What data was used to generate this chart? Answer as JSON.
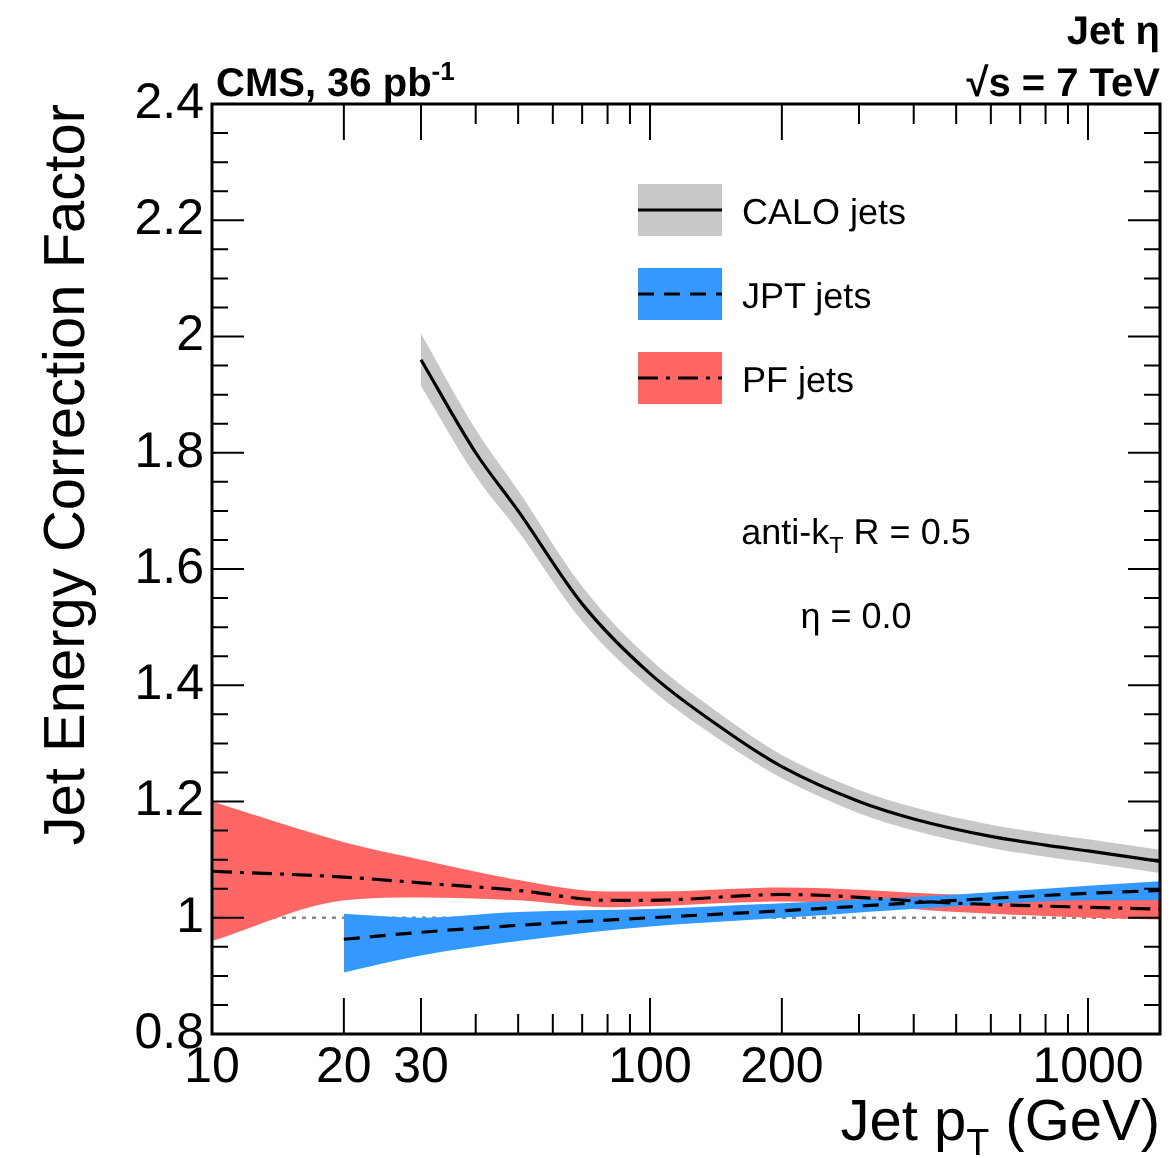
{
  "chart_data": {
    "type": "line",
    "title": "CMS, 36 pb$^{-1}$",
    "xlabel": "Jet p$_{T}$ (GeV)",
    "ylabel": "Jet Energy Correction Factor",
    "annotations": [
      "Jet η",
      "√s = 7 TeV",
      "anti-k$_{T}$ R = 0.5",
      "η = 0.0"
    ],
    "log": "x",
    "xlim": [
      10,
      1460
    ],
    "ylim": [
      0.8,
      2.4
    ],
    "xticks": [
      10,
      20,
      30,
      {
        "value": 40,
        "label": null
      },
      {
        "value": 50,
        "label": null
      },
      {
        "value": 60,
        "label": null
      },
      {
        "value": 70,
        "label": null
      },
      {
        "value": 80,
        "label": null
      },
      {
        "value": 90,
        "label": null
      },
      100,
      200,
      {
        "value": 300,
        "label": null
      },
      {
        "value": 400,
        "label": null
      },
      {
        "value": 500,
        "label": null
      },
      {
        "value": 600,
        "label": null
      },
      {
        "value": 700,
        "label": null
      },
      {
        "value": 800,
        "label": null
      },
      {
        "value": 900,
        "label": null
      },
      1000
    ],
    "yticks": [
      0.8,
      {
        "value": 0.85,
        "label": null
      },
      {
        "value": 0.9,
        "label": null
      },
      {
        "value": 0.95,
        "label": null
      },
      1,
      {
        "value": 1.05,
        "label": null
      },
      {
        "value": 1.1,
        "label": null
      },
      {
        "value": 1.15,
        "label": null
      },
      1.2,
      {
        "value": 1.25,
        "label": null
      },
      {
        "value": 1.3,
        "label": null
      },
      {
        "value": 1.35,
        "label": null
      },
      1.4,
      {
        "value": 1.45,
        "label": null
      },
      {
        "value": 1.5,
        "label": null
      },
      {
        "value": 1.55,
        "label": null
      },
      1.6,
      {
        "value": 1.65,
        "label": null
      },
      {
        "value": 1.7,
        "label": null
      },
      {
        "value": 1.75,
        "label": null
      },
      1.8,
      {
        "value": 1.85,
        "label": null
      },
      {
        "value": 1.9,
        "label": null
      },
      {
        "value": 1.95,
        "label": null
      },
      2,
      {
        "value": 2.05,
        "label": null
      },
      {
        "value": 2.1,
        "label": null
      },
      {
        "value": 2.15,
        "label": null
      },
      2.2,
      {
        "value": 2.25,
        "label": null
      },
      {
        "value": 2.3,
        "label": null
      },
      {
        "value": 2.35,
        "label": null
      },
      2.4
    ],
    "grid": false,
    "legend": "top right",
    "ref_lines": [
      {
        "axis": "y",
        "value": 1,
        "color": "#888888",
        "line_style": "dotted"
      }
    ],
    "series": [
      {
        "name": "CALO jets",
        "color": "#000000",
        "line_style": "solid",
        "x": [
          30,
          40,
          50,
          70,
          100,
          150,
          200,
          300,
          400,
          600,
          800,
          1000,
          1460
        ],
        "values": [
          1.96,
          1.8,
          1.7,
          1.54,
          1.42,
          1.32,
          1.26,
          1.2,
          1.17,
          1.14,
          1.125,
          1.115,
          1.097
        ],
        "lower": [
          1.915,
          1.76,
          1.665,
          1.51,
          1.395,
          1.298,
          1.24,
          1.18,
          1.15,
          1.12,
          1.105,
          1.095,
          1.077
        ],
        "upper": [
          2.005,
          1.84,
          1.735,
          1.57,
          1.445,
          1.342,
          1.28,
          1.22,
          1.19,
          1.16,
          1.145,
          1.135,
          1.117
        ]
      },
      {
        "name": "JPT jets",
        "color": "#000000",
        "line_style": "dashed",
        "x": [
          20,
          30,
          50,
          100,
          200,
          500,
          1000,
          1460
        ],
        "values": [
          0.963,
          0.975,
          0.987,
          1,
          1.012,
          1.03,
          1.042,
          1.047
        ],
        "lower": [
          0.906,
          0.935,
          0.96,
          0.985,
          1,
          1.02,
          1.03,
          1.03
        ],
        "upper": [
          1.007,
          1.0,
          1.01,
          1.015,
          1.025,
          1.04,
          1.055,
          1.063
        ]
      },
      {
        "name": "PF jets",
        "color": "#000000",
        "line_style": "dashdot",
        "x": [
          10,
          20,
          30,
          50,
          80,
          100,
          200,
          500,
          1000,
          1460
        ],
        "values": [
          1.08,
          1.07,
          1.06,
          1.047,
          1.03,
          1.03,
          1.04,
          1.025,
          1.018,
          1.015
        ],
        "lower": [
          0.96,
          1.03,
          1.035,
          1.03,
          1.018,
          1.02,
          1.028,
          1.01,
          1.0,
          0.997
        ],
        "upper": [
          1.2,
          1.13,
          1.1,
          1.065,
          1.045,
          1.045,
          1.052,
          1.04,
          1.035,
          1.03
        ]
      }
    ]
  }
}
